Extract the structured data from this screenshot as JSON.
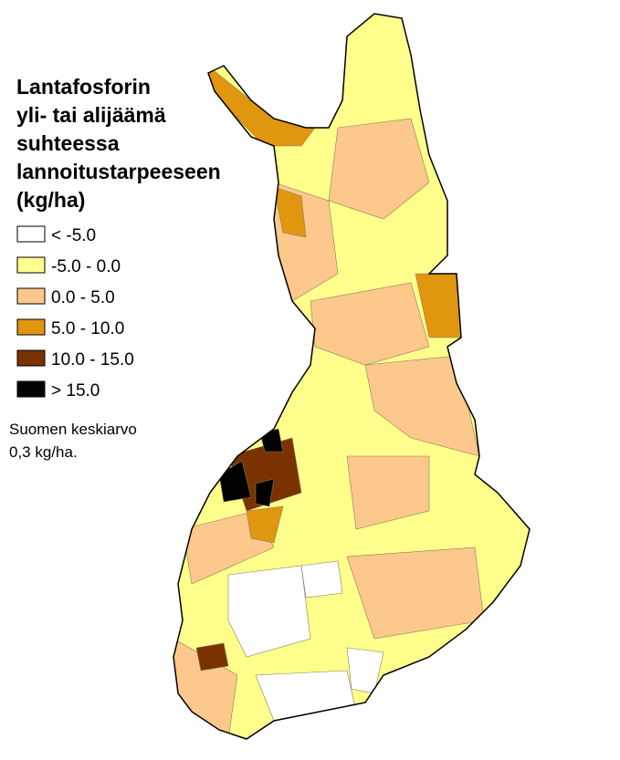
{
  "title_lines": [
    "Lantafosforin",
    "yli- tai alijäämä",
    "suhteessa",
    "lannoitustarpeeseen",
    "(kg/ha)"
  ],
  "legend": [
    {
      "label": "< -5.0",
      "color": "#ffffff"
    },
    {
      "label": "-5.0 - 0.0",
      "color": "#ffff8c"
    },
    {
      "label": "0.0 - 5.0",
      "color": "#fcc88c"
    },
    {
      "label": "5.0 - 10.0",
      "color": "#e0960f"
    },
    {
      "label": "10.0 - 15.0",
      "color": "#7a3200"
    },
    {
      "label": "> 15.0",
      "color": "#000000"
    }
  ],
  "note_lines": [
    "Suomen keskiarvo",
    "0,3 kg/ha."
  ]
}
